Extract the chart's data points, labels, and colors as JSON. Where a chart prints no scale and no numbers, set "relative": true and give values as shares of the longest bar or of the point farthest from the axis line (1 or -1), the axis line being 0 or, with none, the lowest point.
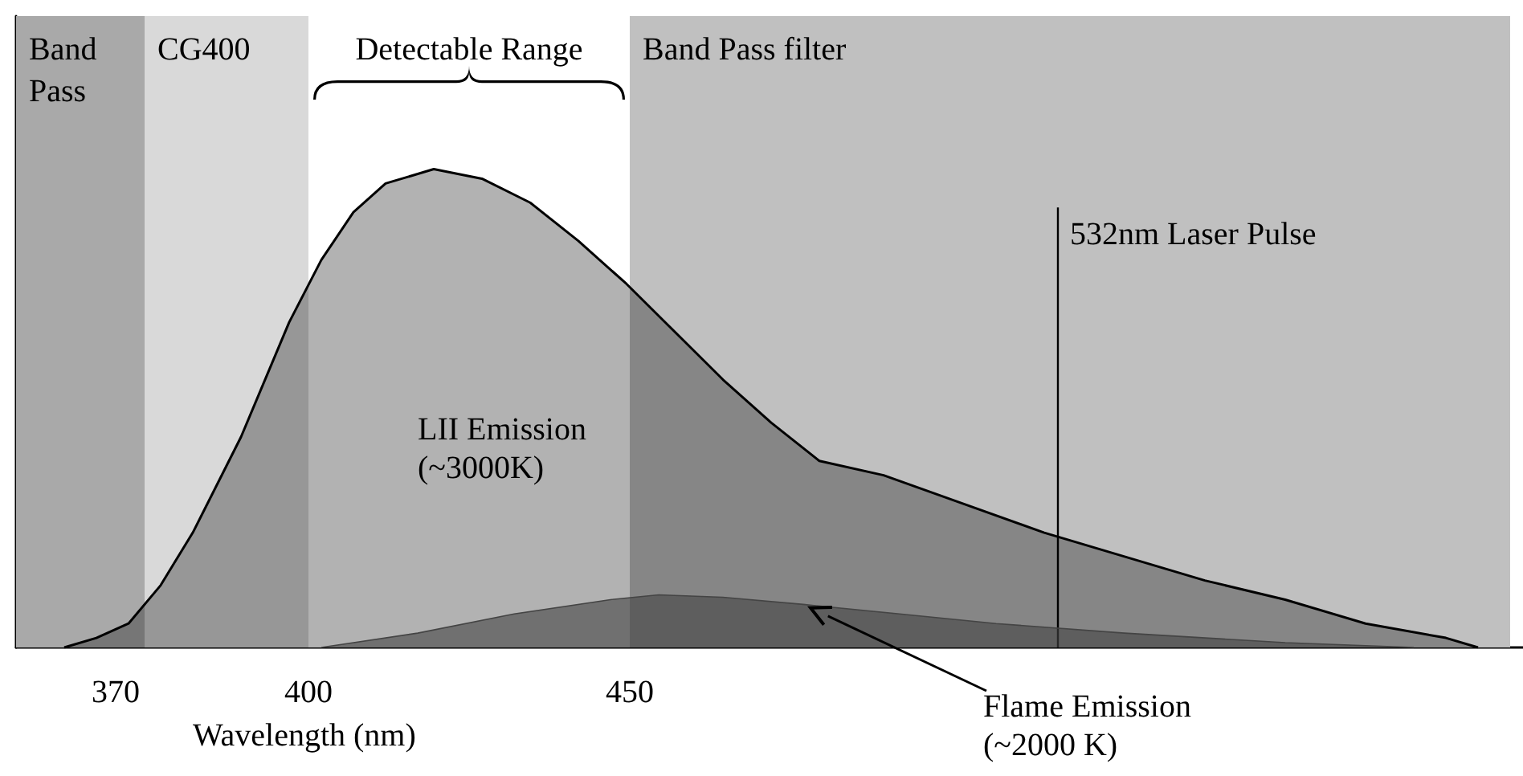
{
  "chart_data": {
    "type": "area",
    "relative": true,
    "xlabel": "Wavelength (nm)",
    "xlim": [
      354.5,
      589
    ],
    "xticks": [
      370,
      400,
      450
    ],
    "grid": false,
    "bands": [
      {
        "axis": "x",
        "from": 354.5,
        "to": 374.5,
        "label": "Band Pass",
        "color": "#a9a9a9"
      },
      {
        "axis": "x",
        "from": 374.5,
        "to": 400,
        "label": "CG400",
        "color": "#d9d9d9"
      },
      {
        "axis": "x",
        "from": 400,
        "to": 450,
        "label": "Detectable Range",
        "color": "#ffffff"
      },
      {
        "axis": "x",
        "from": 450,
        "to": 587,
        "label": "Band Pass filter",
        "color": "#c0c0c0"
      }
    ],
    "ref_lines": [
      {
        "axis": "x",
        "value": 516.5,
        "label": "532nm Laser Pulse",
        "color": "#000000"
      }
    ],
    "series": [
      {
        "name": "LII Emission (~3000K)",
        "color": "#000000",
        "x": [
          362,
          367,
          372,
          377,
          382,
          389.5,
          397,
          402,
          407,
          412,
          419.5,
          427,
          434.5,
          442,
          449.5,
          457,
          464.5,
          472,
          479.5,
          489.5,
          502,
          514.5,
          527,
          539.5,
          552,
          564.5,
          577,
          582
        ],
        "values": [
          0,
          0.02,
          0.05,
          0.13,
          0.24,
          0.44,
          0.68,
          0.81,
          0.91,
          0.97,
          1,
          0.98,
          0.93,
          0.85,
          0.76,
          0.66,
          0.56,
          0.47,
          0.39,
          0.36,
          0.3,
          0.24,
          0.19,
          0.14,
          0.1,
          0.05,
          0.02,
          0
        ]
      },
      {
        "name": "Flame Emission (~2000 K)",
        "color": "#444444",
        "x": [
          402,
          417,
          432,
          447,
          454.5,
          464.5,
          477,
          492,
          507,
          527,
          552,
          572
        ],
        "values": [
          0,
          0.03,
          0.07,
          0.1,
          0.11,
          0.105,
          0.09,
          0.07,
          0.05,
          0.03,
          0.01,
          0
        ]
      }
    ]
  }
}
